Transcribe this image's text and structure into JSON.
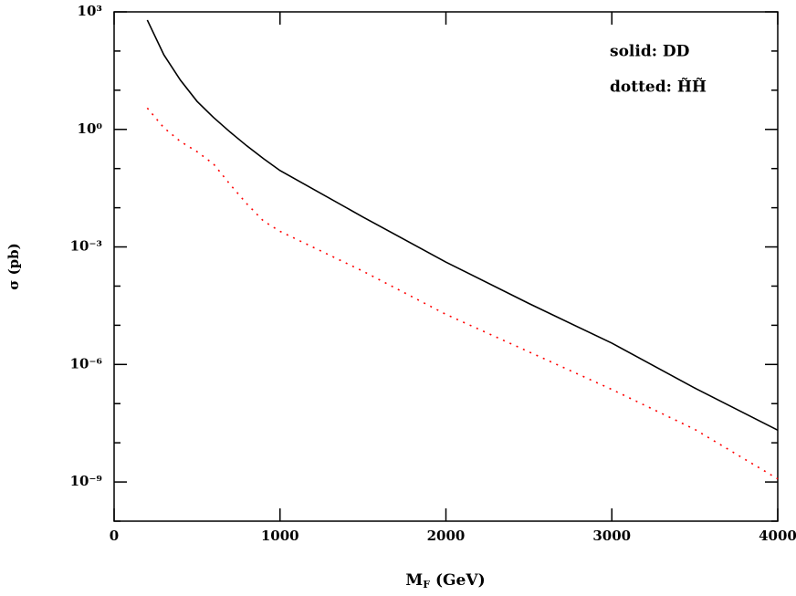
{
  "chart_data": {
    "type": "line",
    "y_label": "σ (pb)",
    "x_label": {
      "main": "M",
      "sub": "F",
      "unit": "(GeV)"
    },
    "annotations": [
      "solid: DD",
      "dotted: H̃H̃"
    ],
    "x": [
      200,
      300,
      400,
      500,
      600,
      700,
      800,
      900,
      1000,
      1500,
      2000,
      2500,
      3000,
      3500,
      4000
    ],
    "series": [
      {
        "color": "#000000",
        "dash": "solid",
        "values": [
          620,
          80,
          18,
          5.2,
          2,
          0.85,
          0.38,
          0.18,
          0.089,
          0.0058,
          0.00041,
          3.6e-05,
          3.5e-06,
          2.5e-07,
          2.1e-08
        ]
      },
      {
        "color": "#ff0000",
        "dash": "dotted",
        "values": [
          3.5,
          1.1,
          0.49,
          0.27,
          0.13,
          0.039,
          0.0126,
          0.0046,
          0.0025,
          0.00024,
          1.9e-05,
          2.1e-06,
          2.3e-07,
          2.2e-08,
          1.2e-09
        ]
      }
    ],
    "xlim": [
      0,
      4000
    ],
    "xticks": [
      0,
      1000,
      2000,
      3000,
      4000
    ],
    "ylim": [
      1e-10,
      1000
    ],
    "log_y": true,
    "yticks": [
      {
        "value": 1000,
        "label": "10³"
      },
      {
        "value": 1,
        "label": "10⁰"
      },
      {
        "value": 0.001,
        "label": "10⁻³"
      },
      {
        "value": 1e-06,
        "label": "10⁻⁶"
      },
      {
        "value": 1e-09,
        "label": "10⁻⁹"
      }
    ],
    "yminor_ticks": [
      100,
      10,
      0.1,
      0.01,
      0.0001,
      1e-05,
      1e-07,
      1e-08,
      1e-10
    ]
  }
}
